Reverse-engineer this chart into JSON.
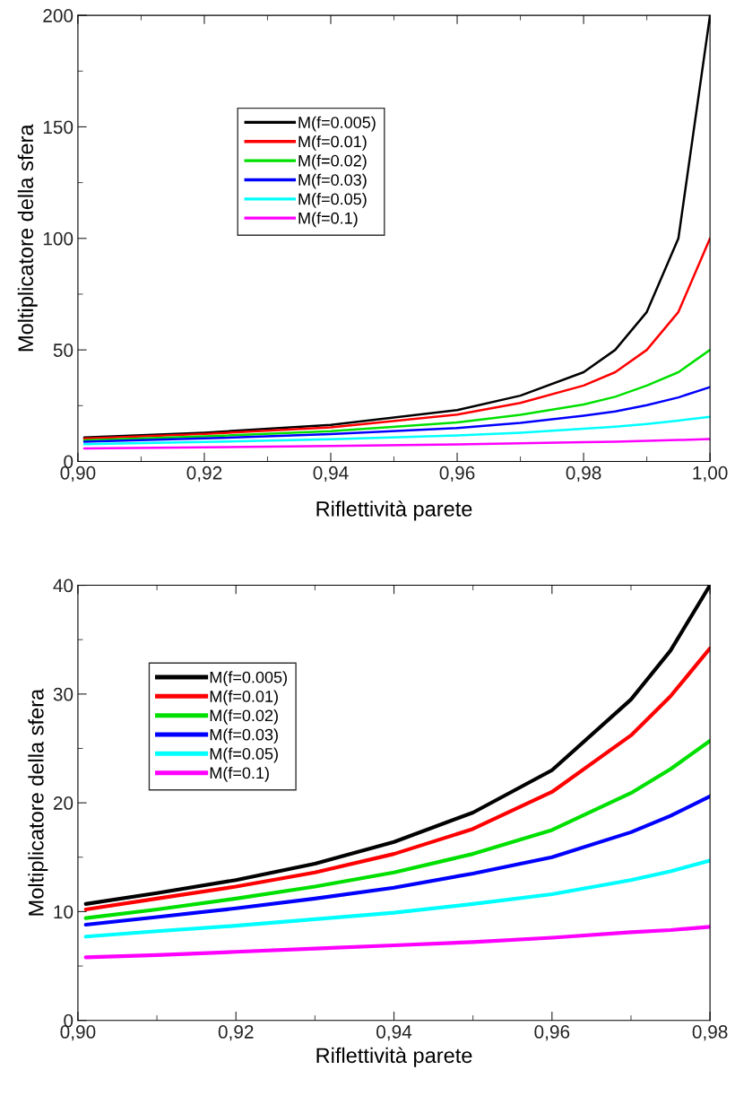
{
  "chart_data": [
    {
      "type": "line",
      "xlabel": "Riflettività parete",
      "ylabel": "Moltiplicatore della sfera",
      "x": [
        0.901,
        0.92,
        0.94,
        0.96,
        0.97,
        0.98,
        0.985,
        0.99,
        0.995,
        1.0
      ],
      "series": [
        {
          "name": "M(f=0.005)",
          "color": "#000000",
          "values": [
            10.7,
            12.9,
            16.4,
            23,
            29.5,
            40,
            50,
            67,
            100,
            200
          ]
        },
        {
          "name": "M(f=0.01)",
          "color": "#ff0000",
          "values": [
            10.2,
            12.3,
            15.3,
            21,
            26.2,
            34,
            40,
            50,
            67,
            100
          ]
        },
        {
          "name": "M(f=0.02)",
          "color": "#00e000",
          "values": [
            9.4,
            11.2,
            13.6,
            17.5,
            20.9,
            25.5,
            29,
            34,
            40,
            50
          ]
        },
        {
          "name": "M(f=0.03)",
          "color": "#0000ff",
          "values": [
            8.8,
            10.3,
            12.2,
            15,
            17.3,
            20.5,
            22.4,
            25.2,
            28.7,
            33.3
          ]
        },
        {
          "name": "M(f=0.05)",
          "color": "#00ffff",
          "values": [
            7.7,
            8.7,
            9.9,
            11.6,
            12.9,
            14.7,
            15.6,
            16.8,
            18.3,
            20
          ]
        },
        {
          "name": "M(f=0.1)",
          "color": "#ff00ff",
          "values": [
            5.8,
            6.3,
            6.9,
            7.6,
            8.1,
            8.6,
            8.8,
            9.2,
            9.6,
            10
          ]
        }
      ],
      "xlim": [
        0.9,
        1.0
      ],
      "xticks": [
        {
          "value": 0.9,
          "label": "0,90"
        },
        {
          "value": 0.92,
          "label": "0,92"
        },
        {
          "value": 0.94,
          "label": "0,94"
        },
        {
          "value": 0.96,
          "label": "0,96"
        },
        {
          "value": 0.98,
          "label": "0,98"
        },
        {
          "value": 1.0,
          "label": "1,00"
        }
      ],
      "ylim": [
        0,
        200
      ],
      "yticks": [
        0,
        50,
        100,
        150,
        200
      ],
      "grid": false,
      "legend": "top left",
      "marker": "none",
      "line_style": "solid"
    },
    {
      "type": "line",
      "xlabel": "Riflettività parete",
      "ylabel": "Moltiplicatore della sfera",
      "x": [
        0.901,
        0.91,
        0.92,
        0.93,
        0.94,
        0.95,
        0.96,
        0.97,
        0.975,
        0.98
      ],
      "series": [
        {
          "name": "M(f=0.005)",
          "color": "#000000",
          "values": [
            10.7,
            11.7,
            12.9,
            14.4,
            16.4,
            19.1,
            23.0,
            29.5,
            34,
            40
          ]
        },
        {
          "name": "M(f=0.01)",
          "color": "#ff0000",
          "values": [
            10.2,
            11.2,
            12.3,
            13.6,
            15.3,
            17.6,
            21.0,
            26.2,
            29.8,
            34.2
          ]
        },
        {
          "name": "M(f=0.02)",
          "color": "#00e000",
          "values": [
            9.4,
            10.2,
            11.2,
            12.3,
            13.6,
            15.3,
            17.5,
            20.9,
            23.1,
            25.7
          ]
        },
        {
          "name": "M(f=0.03)",
          "color": "#0000ff",
          "values": [
            8.8,
            9.5,
            10.3,
            11.2,
            12.2,
            13.5,
            15.0,
            17.3,
            18.8,
            20.6
          ]
        },
        {
          "name": "M(f=0.05)",
          "color": "#00ffff",
          "values": [
            7.7,
            8.2,
            8.7,
            9.3,
            9.9,
            10.7,
            11.6,
            12.9,
            13.7,
            14.7
          ]
        },
        {
          "name": "M(f=0.1)",
          "color": "#ff00ff",
          "values": [
            5.8,
            6.0,
            6.3,
            6.6,
            6.9,
            7.2,
            7.6,
            8.1,
            8.3,
            8.6
          ]
        }
      ],
      "xlim": [
        0.9,
        0.98
      ],
      "xticks": [
        {
          "value": 0.9,
          "label": "0,90"
        },
        {
          "value": 0.92,
          "label": "0,92"
        },
        {
          "value": 0.94,
          "label": "0,94"
        },
        {
          "value": 0.96,
          "label": "0,96"
        },
        {
          "value": 0.98,
          "label": "0,98"
        }
      ],
      "ylim": [
        0,
        40
      ],
      "yticks": [
        0,
        10,
        20,
        30,
        40
      ],
      "grid": false,
      "legend": "top left",
      "marker": "none",
      "line_style": "solid"
    }
  ]
}
